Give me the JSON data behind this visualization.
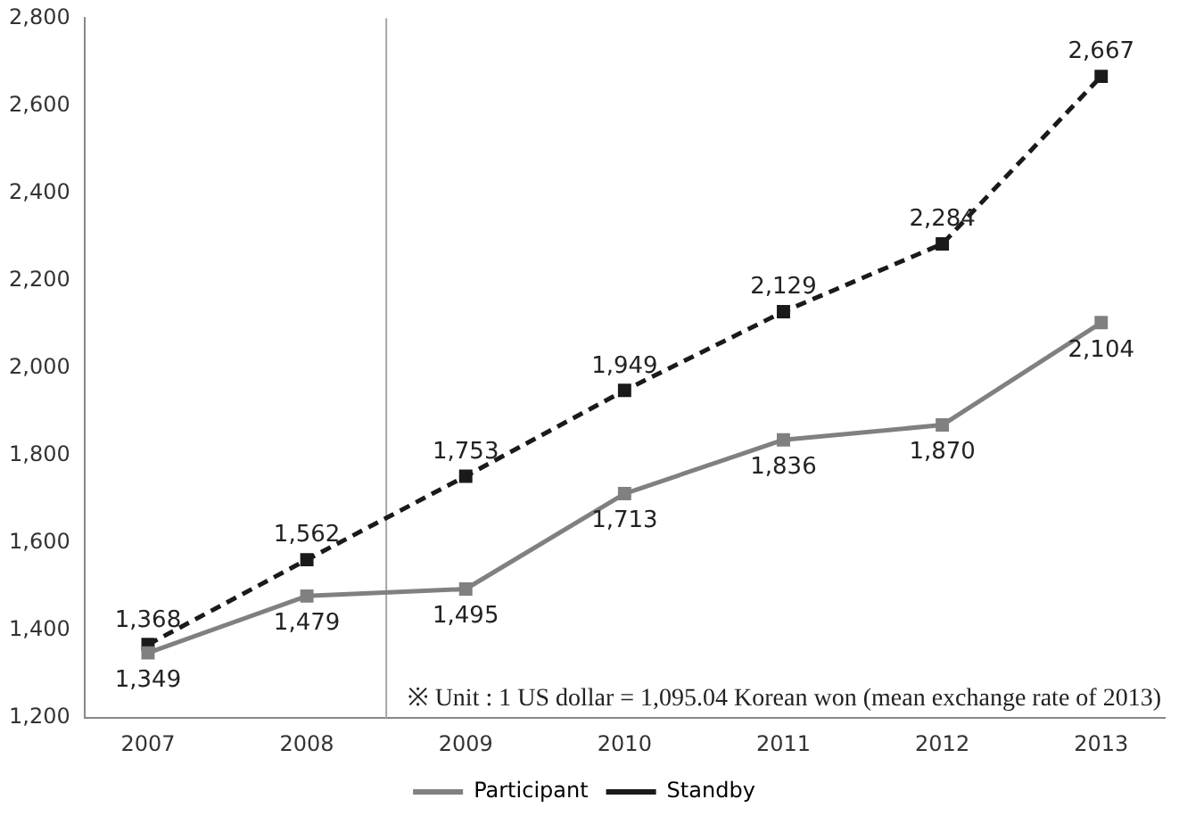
{
  "chart_data": {
    "type": "line",
    "x": [
      2007,
      2008,
      2009,
      2010,
      2011,
      2012,
      2013
    ],
    "xlim": [
      2006.6,
      2013.4
    ],
    "xticks": [
      2007,
      2008,
      2009,
      2010,
      2011,
      2012,
      2013
    ],
    "ylim": [
      1200,
      2800
    ],
    "yticks": [
      {
        "value": 1200,
        "label": "1,200"
      },
      {
        "value": 1400,
        "label": "1,400"
      },
      {
        "value": 1600,
        "label": "1,600"
      },
      {
        "value": 1800,
        "label": "1,800"
      },
      {
        "value": 2000,
        "label": "2,000"
      },
      {
        "value": 2200,
        "label": "2,200"
      },
      {
        "value": 2400,
        "label": "2,400"
      },
      {
        "value": 2600,
        "label": "2,600"
      },
      {
        "value": 2800,
        "label": "2,800"
      }
    ],
    "series": [
      {
        "name": "Participant",
        "color": "#808080",
        "line_style": "solid",
        "values": [
          1349,
          1479,
          1495,
          1713,
          1836,
          1870,
          2104
        ],
        "value_labels": [
          "1,349",
          "1,479",
          "1,495",
          "1,713",
          "1,836",
          "1,870",
          "2,104"
        ]
      },
      {
        "name": "Standby",
        "color": "#1a1a1a",
        "line_style": "dashed",
        "values": [
          1368,
          1562,
          1753,
          1949,
          2129,
          2284,
          2667
        ],
        "value_labels": [
          "1,368",
          "1,562",
          "1,753",
          "1,949",
          "2,129",
          "2,284",
          "2,667"
        ]
      }
    ],
    "marker": "square",
    "grid": false,
    "legend": "bottom",
    "ref_lines": [
      {
        "axis": "x",
        "value": 2008.5,
        "color": "#a6a6a6"
      }
    ],
    "annotations": [
      "※ Unit : 1 US dollar = 1,095.04 Korean won (mean exchange rate of 2013)"
    ]
  }
}
